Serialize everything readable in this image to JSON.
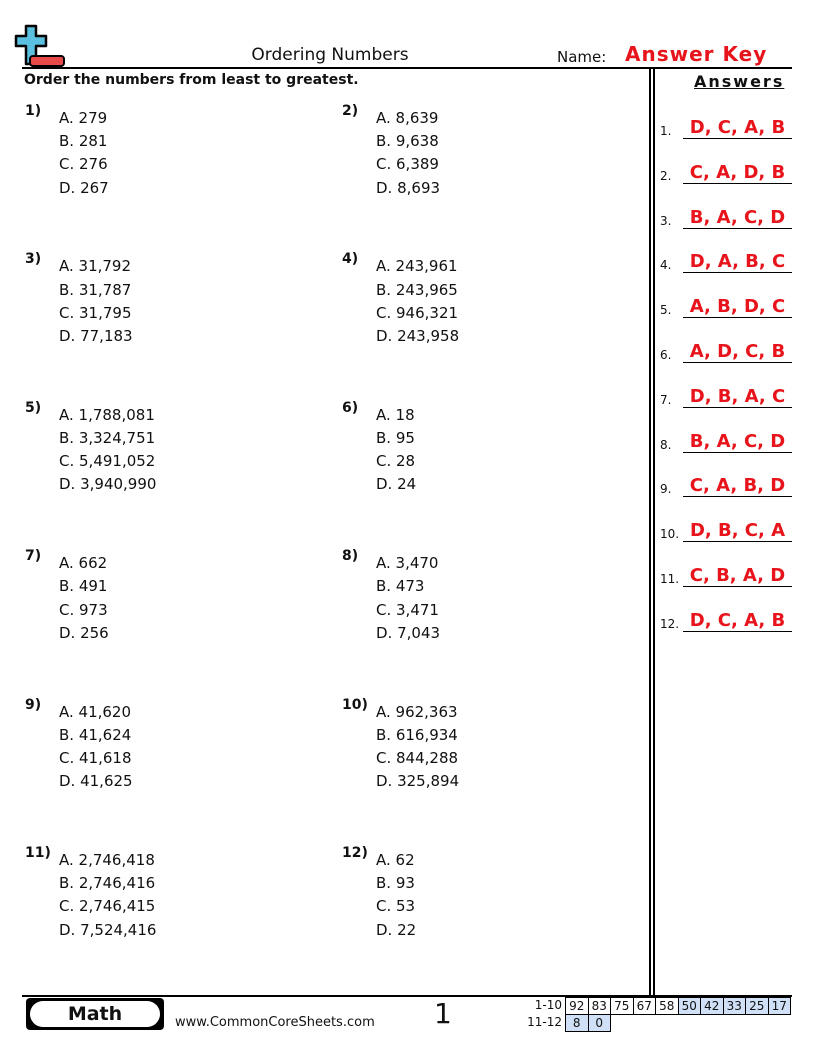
{
  "header": {
    "title": "Ordering Numbers",
    "name_label": "Name:",
    "name_value": "Answer Key",
    "logo": "plus-minus-logo"
  },
  "instructions": "Order the numbers from least to greatest.",
  "answers_heading": "Answers",
  "problems": [
    {
      "num": "1)",
      "options": [
        "A. 279",
        "B. 281",
        "C. 276",
        "D. 267"
      ]
    },
    {
      "num": "2)",
      "options": [
        "A. 8,639",
        "B. 9,638",
        "C. 6,389",
        "D. 8,693"
      ]
    },
    {
      "num": "3)",
      "options": [
        "A. 31,792",
        "B. 31,787",
        "C. 31,795",
        "D. 77,183"
      ]
    },
    {
      "num": "4)",
      "options": [
        "A. 243,961",
        "B. 243,965",
        "C. 946,321",
        "D. 243,958"
      ]
    },
    {
      "num": "5)",
      "options": [
        "A. 1,788,081",
        "B. 3,324,751",
        "C. 5,491,052",
        "D. 3,940,990"
      ]
    },
    {
      "num": "6)",
      "options": [
        "A. 18",
        "B. 95",
        "C. 28",
        "D. 24"
      ]
    },
    {
      "num": "7)",
      "options": [
        "A. 662",
        "B. 491",
        "C. 973",
        "D. 256"
      ]
    },
    {
      "num": "8)",
      "options": [
        "A. 3,470",
        "B. 473",
        "C. 3,471",
        "D. 7,043"
      ]
    },
    {
      "num": "9)",
      "options": [
        "A. 41,620",
        "B. 41,624",
        "C. 41,618",
        "D. 41,625"
      ]
    },
    {
      "num": "10)",
      "options": [
        "A. 962,363",
        "B. 616,934",
        "C. 844,288",
        "D. 325,894"
      ]
    },
    {
      "num": "11)",
      "options": [
        "A. 2,746,418",
        "B. 2,746,416",
        "C. 2,746,415",
        "D. 7,524,416"
      ]
    },
    {
      "num": "12)",
      "options": [
        "A. 62",
        "B. 93",
        "C. 53",
        "D. 22"
      ]
    }
  ],
  "answers": [
    {
      "num": "1.",
      "value": "D, C, A, B"
    },
    {
      "num": "2.",
      "value": "C, A, D, B"
    },
    {
      "num": "3.",
      "value": "B, A, C, D"
    },
    {
      "num": "4.",
      "value": "D, A, B, C"
    },
    {
      "num": "5.",
      "value": "A, B, D, C"
    },
    {
      "num": "6.",
      "value": "A, D, C, B"
    },
    {
      "num": "7.",
      "value": "D, B, A, C"
    },
    {
      "num": "8.",
      "value": "B, A, C, D"
    },
    {
      "num": "9.",
      "value": "C, A, B, D"
    },
    {
      "num": "10.",
      "value": "D, B, C, A"
    },
    {
      "num": "11.",
      "value": "C, B, A, D"
    },
    {
      "num": "12.",
      "value": "D, C, A, B"
    }
  ],
  "footer": {
    "subject": "Math",
    "url": "www.CommonCoreSheets.com",
    "page": "1",
    "score_rows": [
      {
        "label": "1-10",
        "cells": [
          "92",
          "83",
          "75",
          "67",
          "58",
          "50",
          "42",
          "33",
          "25",
          "17"
        ],
        "blue_from": 5
      },
      {
        "label": "11-12",
        "cells": [
          "8",
          "0"
        ],
        "blue_from": 0
      }
    ]
  },
  "colors": {
    "answer": "#e8141b",
    "score_blue": "#cfe0f7",
    "logo_blue": "#5bbfe0",
    "logo_red": "#e84a4a"
  }
}
